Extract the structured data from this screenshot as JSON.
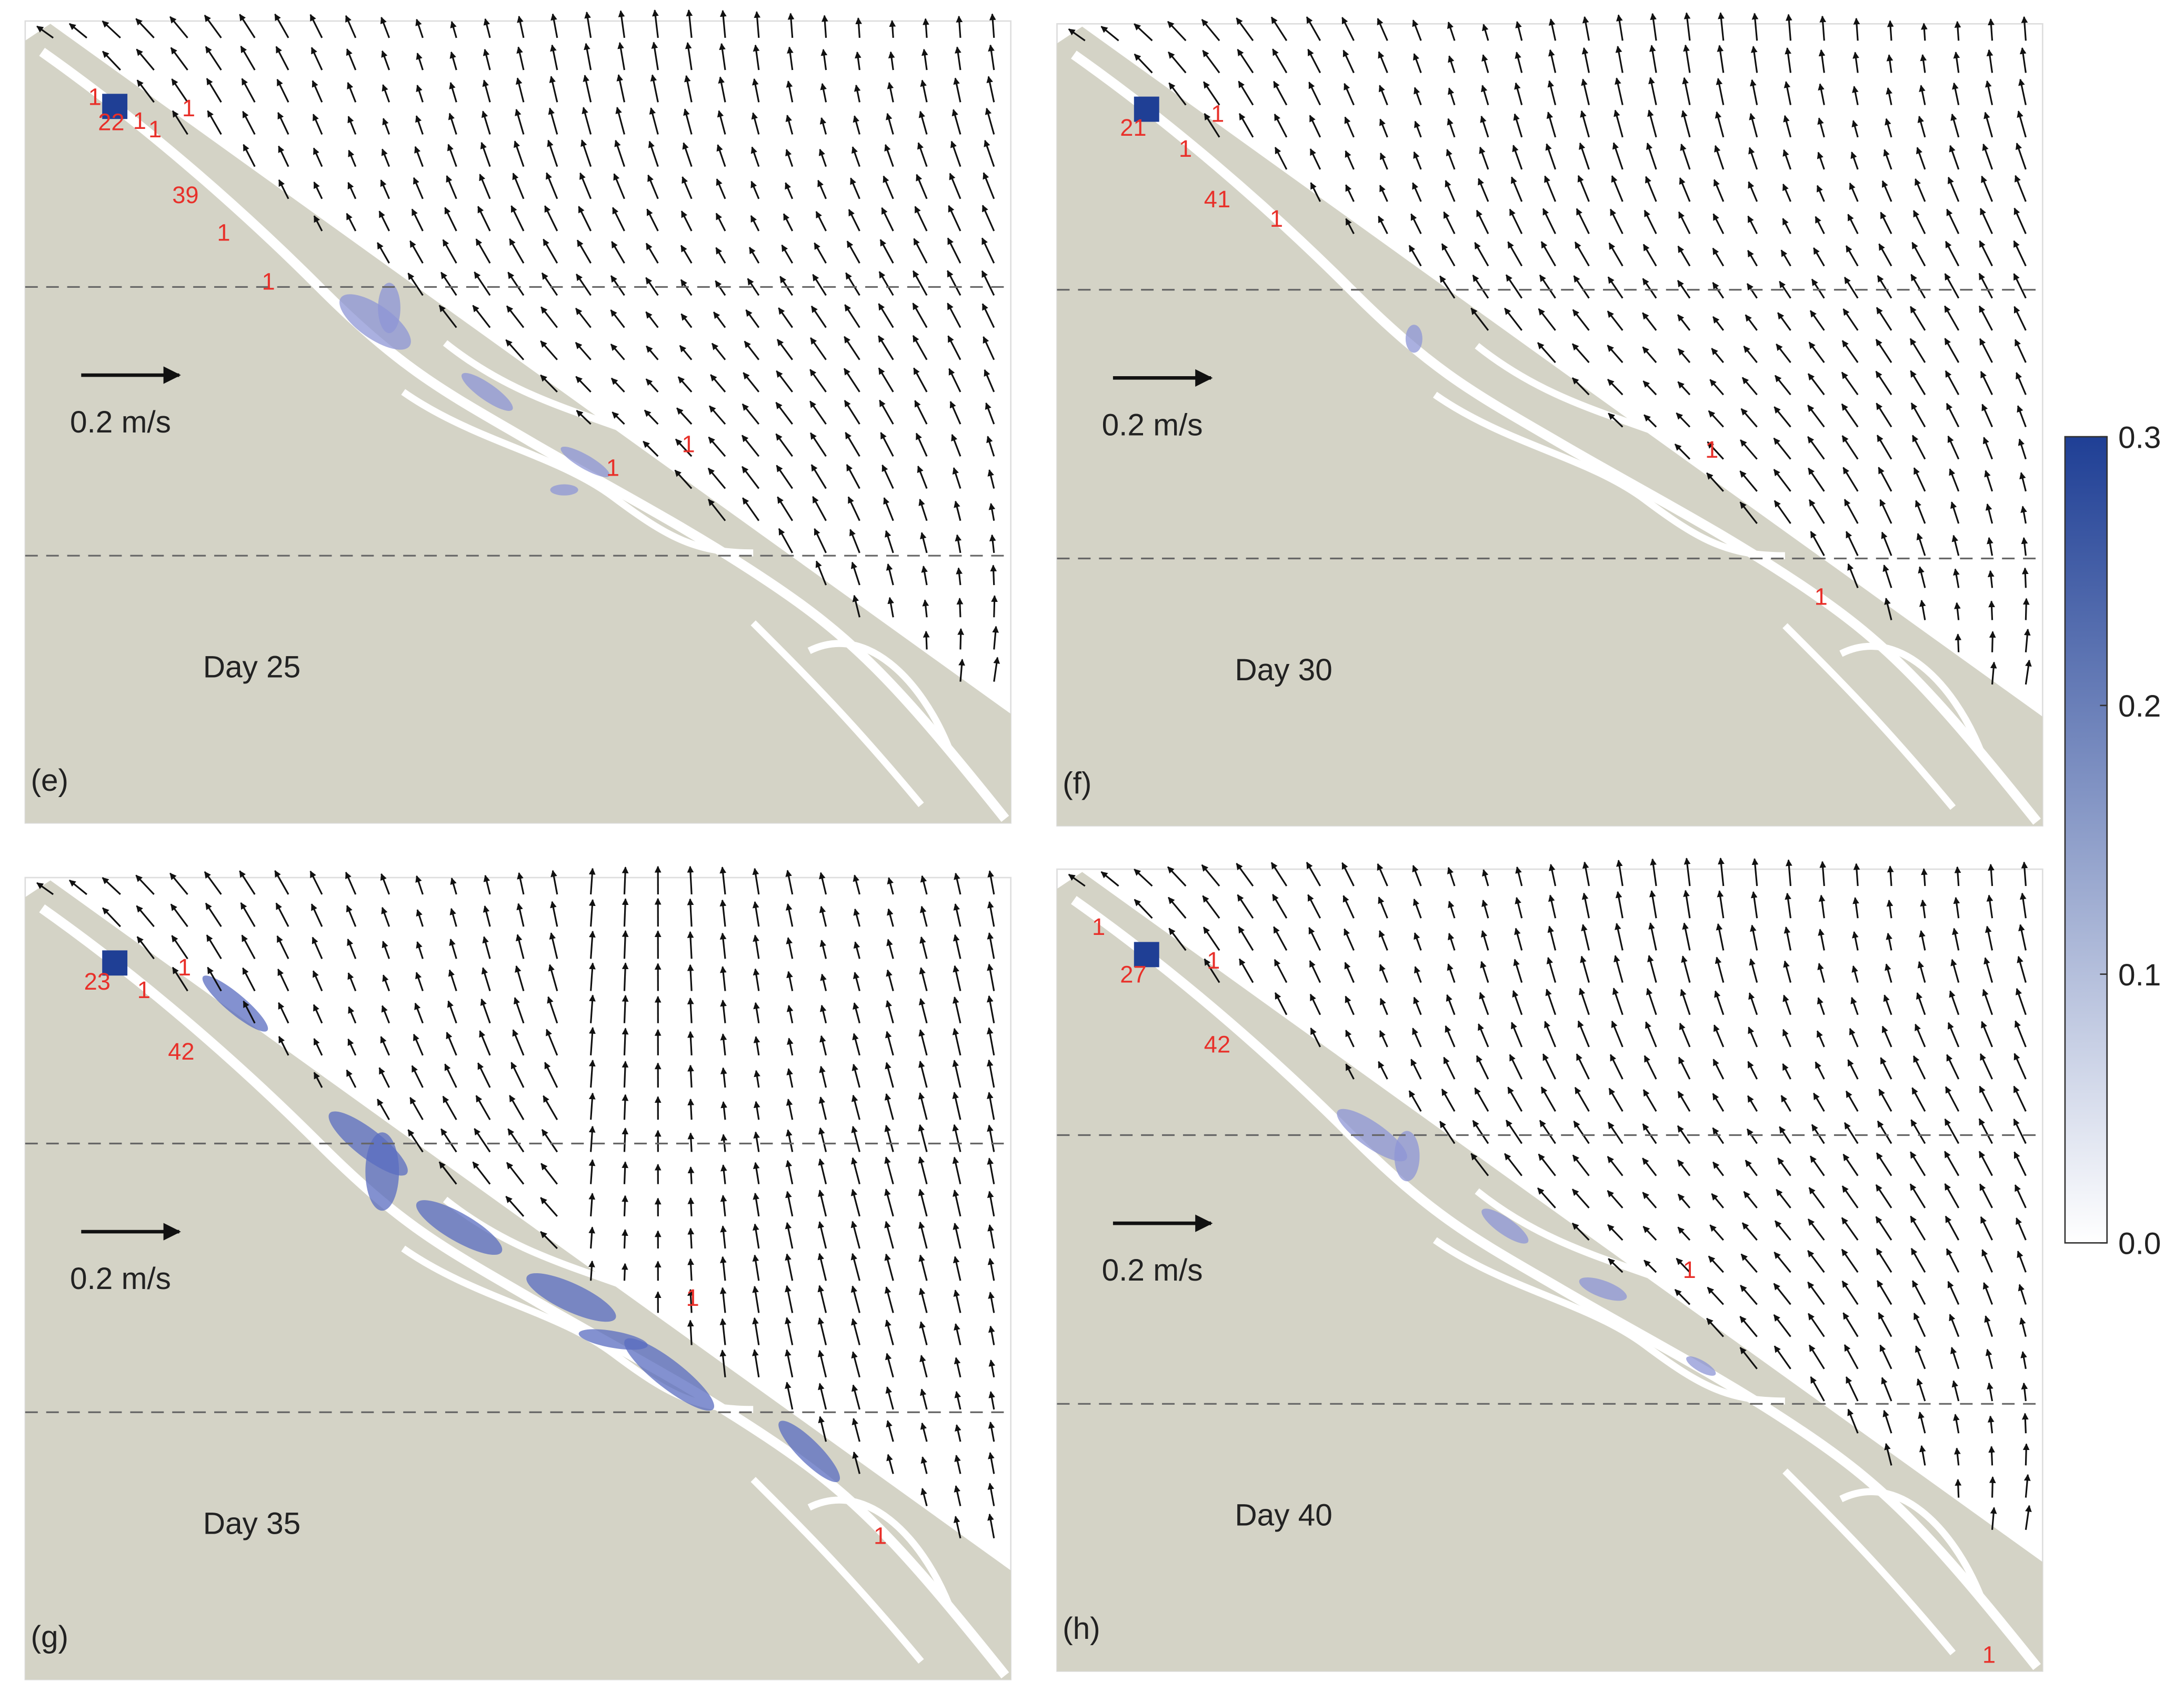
{
  "panels": [
    {
      "label": "(e)",
      "day": "Day 25",
      "scale": "0.2 m/s",
      "counts": [
        "1",
        "22",
        "1",
        "1",
        "1",
        "39",
        "1",
        "1",
        "1",
        "1"
      ]
    },
    {
      "label": "(f)",
      "day": "Day 30",
      "scale": "0.2 m/s",
      "counts": [
        "21",
        "1",
        "1",
        "41",
        "1",
        "1",
        "1"
      ]
    },
    {
      "label": "(g)",
      "day": "Day 35",
      "scale": "0.2 m/s",
      "counts": [
        "23",
        "1",
        "1",
        "42",
        "1",
        "1"
      ]
    },
    {
      "label": "(h)",
      "day": "Day 40",
      "scale": "0.2 m/s",
      "counts": [
        "1",
        "27",
        "1",
        "42",
        "1",
        "1"
      ]
    }
  ],
  "colorbar": {
    "ylim": [
      0,
      0.3
    ],
    "yticks": [
      {
        "value": 0,
        "label": "0.0"
      },
      0.1,
      0.2,
      0.3
    ],
    "colors": [
      "#ffffff",
      "#1f3f95"
    ]
  }
}
